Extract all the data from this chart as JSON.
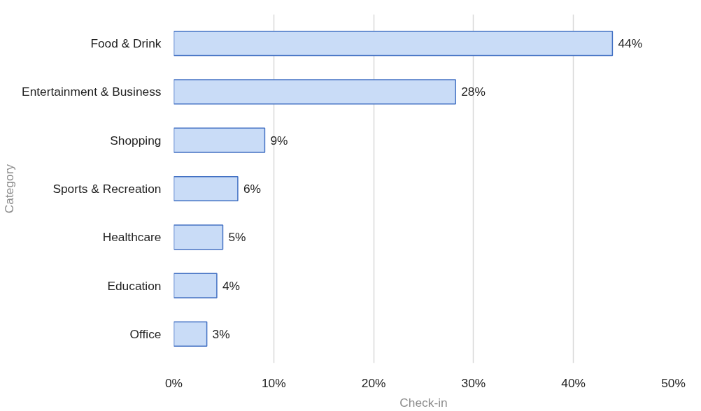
{
  "chart_data": {
    "type": "bar",
    "orientation": "horizontal",
    "xlabel": "Check-in",
    "ylabel": "Category",
    "categories": [
      "Food & Drink",
      "Entertainment & Business",
      "Shopping",
      "Sports & Recreation",
      "Healthcare",
      "Education",
      "Office"
    ],
    "values": [
      43.9,
      28.2,
      9.1,
      6.4,
      4.9,
      4.3,
      3.3
    ],
    "value_labels": [
      "44%",
      "28%",
      "9%",
      "6%",
      "5%",
      "4%",
      "3%"
    ],
    "color": "#c9dcf7",
    "xlim": [
      0,
      50
    ],
    "xticks": [
      {
        "value": 0,
        "label": "0%"
      },
      {
        "value": 10,
        "label": "10%"
      },
      {
        "value": 20,
        "label": "20%"
      },
      {
        "value": 30,
        "label": "30%"
      },
      {
        "value": 40,
        "label": "40%"
      },
      {
        "value": 50,
        "label": "50%"
      }
    ],
    "grid": "x"
  }
}
